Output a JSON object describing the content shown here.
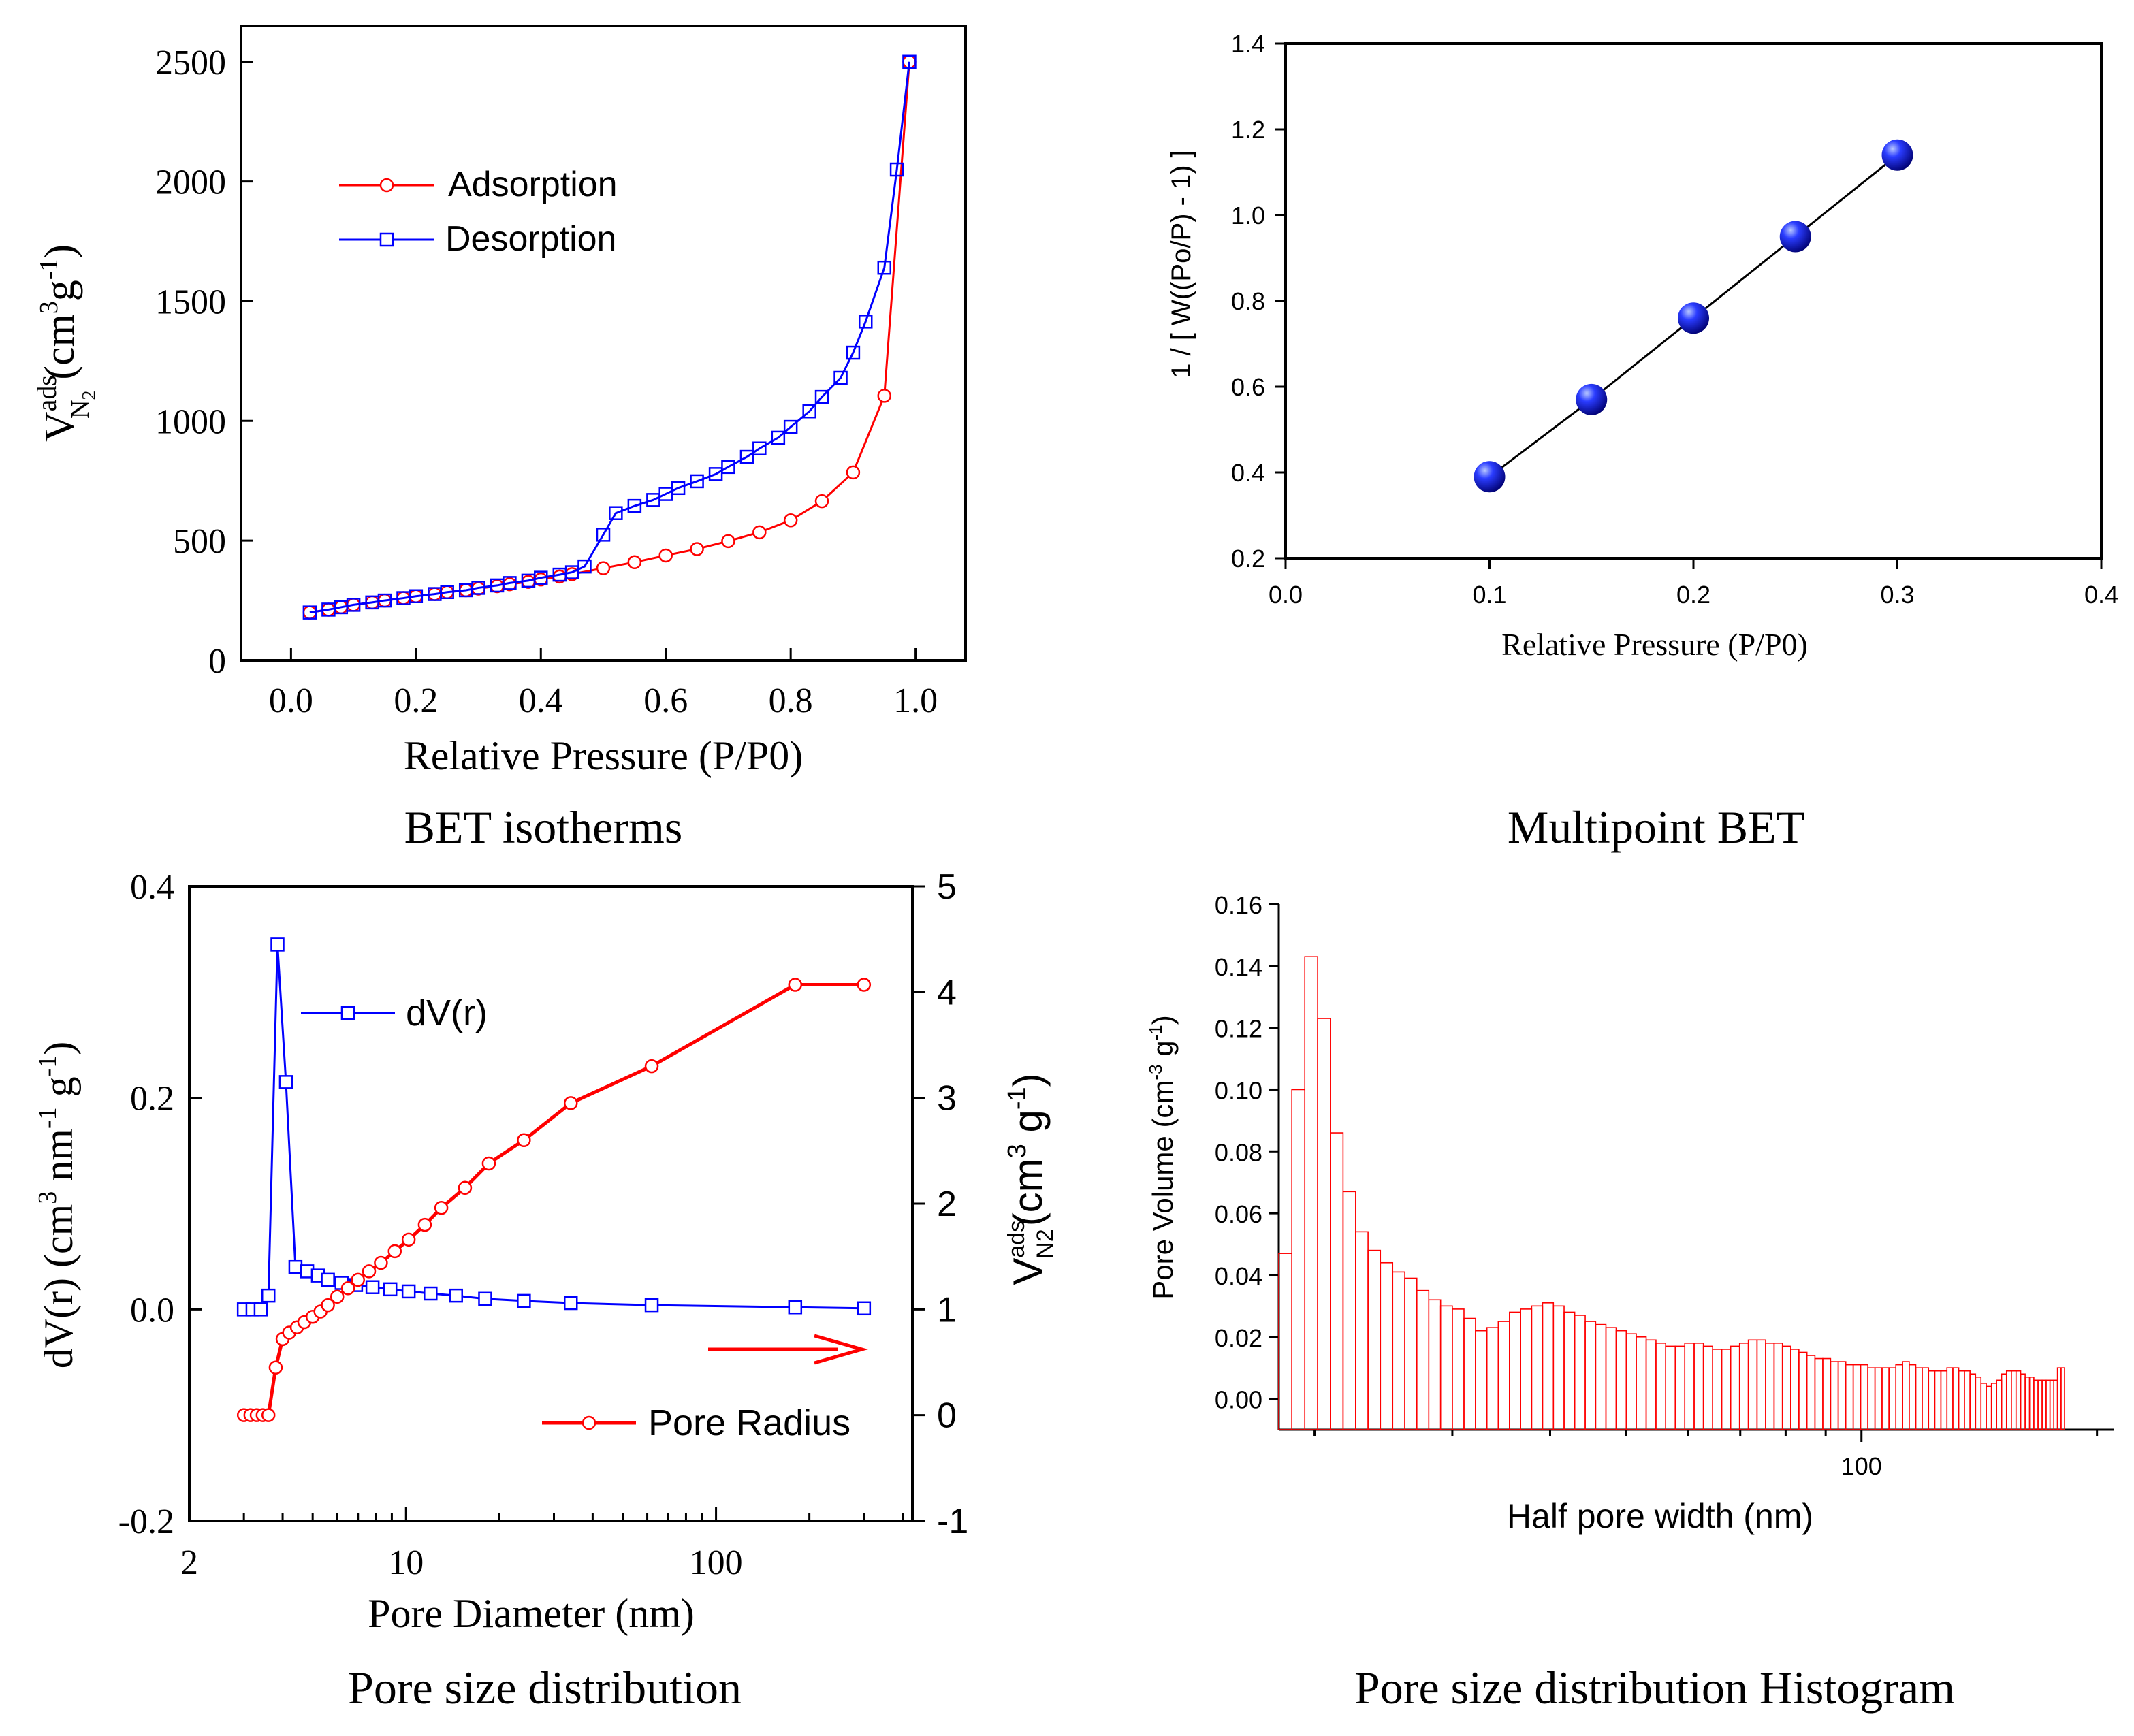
{
  "chart_data": [
    {
      "type": "line",
      "caption": "BET isotherms",
      "xlabel": "Relative Pressure (P/P0)",
      "ylabel_main": "V",
      "ylabel_sup": "ads",
      "ylabel_sub": "N",
      "ylabel_sub2": "2",
      "ylabel_unit": "(cm",
      "ylabel_unit_sup": "3",
      "ylabel_unit_mid": "g",
      "ylabel_unit_sup2": "-1",
      "ylabel_unit_end": ")",
      "xlim": [
        -0.08,
        1.08
      ],
      "ylim": [
        0,
        2650
      ],
      "xticks": [
        0.0,
        0.2,
        0.4,
        0.6,
        0.8,
        1.0
      ],
      "xtick_labels": [
        "0.0",
        "0.2",
        "0.4",
        "0.6",
        "0.8",
        "1.0"
      ],
      "yticks": [
        0,
        500,
        1000,
        1500,
        2000,
        2500
      ],
      "ytick_labels": [
        "0",
        "500",
        "1000",
        "1500",
        "2000",
        "2500"
      ],
      "legend": [
        "Adsorption",
        "Desorption"
      ],
      "series": [
        {
          "name": "Adsorption",
          "color": "#ff0000",
          "marker": "circle",
          "x": [
            0.03,
            0.06,
            0.08,
            0.1,
            0.13,
            0.15,
            0.18,
            0.2,
            0.23,
            0.25,
            0.28,
            0.3,
            0.33,
            0.35,
            0.38,
            0.4,
            0.43,
            0.45,
            0.5,
            0.55,
            0.6,
            0.65,
            0.7,
            0.75,
            0.8,
            0.85,
            0.9,
            0.95,
            0.99
          ],
          "y": [
            200,
            212,
            222,
            232,
            242,
            250,
            260,
            268,
            277,
            285,
            293,
            300,
            310,
            318,
            328,
            338,
            350,
            360,
            385,
            410,
            438,
            465,
            498,
            535,
            585,
            665,
            785,
            1105,
            2500
          ]
        },
        {
          "name": "Desorption",
          "color": "#0000ff",
          "marker": "square",
          "x": [
            0.03,
            0.06,
            0.08,
            0.1,
            0.13,
            0.15,
            0.18,
            0.2,
            0.23,
            0.25,
            0.28,
            0.3,
            0.33,
            0.35,
            0.38,
            0.4,
            0.43,
            0.45,
            0.47,
            0.5,
            0.52,
            0.55,
            0.58,
            0.6,
            0.62,
            0.65,
            0.68,
            0.7,
            0.73,
            0.75,
            0.78,
            0.8,
            0.83,
            0.85,
            0.88,
            0.9,
            0.92,
            0.95,
            0.97,
            0.99
          ],
          "y": [
            200,
            212,
            222,
            232,
            242,
            250,
            260,
            268,
            277,
            285,
            293,
            303,
            313,
            323,
            333,
            345,
            358,
            368,
            392,
            525,
            615,
            645,
            670,
            695,
            720,
            748,
            778,
            808,
            850,
            885,
            930,
            975,
            1040,
            1100,
            1180,
            1285,
            1415,
            1640,
            2050,
            2500
          ]
        }
      ]
    },
    {
      "type": "scatter",
      "caption": "Multipoint BET",
      "xlabel": "Relative Pressure (P/P0)",
      "ylabel": "1 / [ W((Po/P) - 1) ]",
      "xlim": [
        0.0,
        0.4
      ],
      "ylim": [
        0.2,
        1.4
      ],
      "xticks": [
        0.0,
        0.1,
        0.2,
        0.3,
        0.4
      ],
      "xtick_labels": [
        "0.0",
        "0.1",
        "0.2",
        "0.3",
        "0.4"
      ],
      "yticks": [
        0.2,
        0.4,
        0.6,
        0.8,
        1.0,
        1.2,
        1.4
      ],
      "ytick_labels": [
        "0.2",
        "0.4",
        "0.6",
        "0.8",
        "1.0",
        "1.2",
        "1.4"
      ],
      "series": [
        {
          "name": "BET points",
          "color": "#0000ee",
          "x": [
            0.1,
            0.15,
            0.2,
            0.25,
            0.3
          ],
          "y": [
            0.39,
            0.57,
            0.76,
            0.95,
            1.14
          ]
        }
      ]
    },
    {
      "type": "line",
      "caption": "Pore size distribution",
      "xlabel": "Pore Diameter (nm)",
      "xscale": "log",
      "ylabel_left": "dV(r) (cm",
      "ylabel_left_sup": "3",
      "ylabel_left_mid": " nm",
      "ylabel_left_sup2": "-1",
      "ylabel_left_mid2": " g",
      "ylabel_left_sup3": "-1",
      "ylabel_left_end": ")",
      "ylabel_right_main": "V",
      "ylabel_right_sup": "ads",
      "ylabel_right_sub": "N2",
      "ylabel_right_unit": "(cm",
      "ylabel_right_unit_sup": "3",
      "ylabel_right_unit_mid": " g",
      "ylabel_right_unit_sup2": "-1",
      "ylabel_right_unit_end": ")",
      "xlim": [
        2,
        430
      ],
      "ylim_left": [
        -0.2,
        0.4
      ],
      "ylim_right": [
        -1,
        5
      ],
      "xtick_labels": [
        "2",
        "10",
        "100"
      ],
      "xticks": [
        2,
        10,
        100
      ],
      "yticks_left": [
        -0.2,
        0.0,
        0.2,
        0.4
      ],
      "ytick_left_labels": [
        "-0.2",
        "0.0",
        "0.2",
        "0.4"
      ],
      "yticks_right": [
        -1,
        0,
        1,
        2,
        3,
        4,
        5
      ],
      "ytick_right_labels": [
        "-1",
        "0",
        "1",
        "2",
        "3",
        "4",
        "5"
      ],
      "legend": [
        "dV(r)",
        "Pore Radius"
      ],
      "series": [
        {
          "name": "dV(r)",
          "axis": "left",
          "color": "#0000ff",
          "marker": "square",
          "x": [
            3.0,
            3.2,
            3.4,
            3.6,
            3.85,
            4.1,
            4.4,
            4.8,
            5.2,
            5.6,
            6.2,
            6.9,
            7.8,
            8.9,
            10.2,
            12.0,
            14.5,
            18.0,
            24.0,
            34.0,
            62.0,
            180.0,
            300.0
          ],
          "y": [
            0.0,
            0.0,
            0.0,
            0.013,
            0.345,
            0.215,
            0.04,
            0.036,
            0.032,
            0.028,
            0.025,
            0.023,
            0.021,
            0.019,
            0.017,
            0.015,
            0.013,
            0.01,
            0.008,
            0.006,
            0.004,
            0.002,
            0.001
          ]
        },
        {
          "name": "Pore Radius",
          "axis": "right",
          "color": "#ff0000",
          "marker": "circle",
          "x": [
            3.0,
            3.15,
            3.3,
            3.45,
            3.6,
            3.8,
            4.0,
            4.2,
            4.45,
            4.7,
            5.0,
            5.3,
            5.6,
            6.0,
            6.5,
            7.0,
            7.6,
            8.3,
            9.2,
            10.2,
            11.5,
            13.0,
            15.5,
            18.5,
            24.0,
            34.0,
            62.0,
            180.0,
            300.0
          ],
          "y": [
            0.0,
            0.0,
            0.0,
            0.0,
            0.0,
            0.45,
            0.72,
            0.78,
            0.83,
            0.88,
            0.93,
            0.98,
            1.04,
            1.12,
            1.2,
            1.28,
            1.36,
            1.44,
            1.55,
            1.66,
            1.8,
            1.96,
            2.15,
            2.38,
            2.6,
            2.95,
            3.3,
            4.07,
            4.07
          ]
        }
      ]
    },
    {
      "type": "bar",
      "caption": "Pore size distribution Histogram",
      "xlabel": "Half pore width (nm)",
      "xscale": "log",
      "ylabel": "Pore Volume (cm",
      "ylabel_sup": "-3",
      "ylabel_mid": " g",
      "ylabel_sup2": "-1",
      "ylabel_end": ")",
      "xlim": [
        18,
        210
      ],
      "ylim": [
        -0.01,
        0.16
      ],
      "xticks": [
        100
      ],
      "xtick_labels": [
        "100"
      ],
      "yticks": [
        0.0,
        0.02,
        0.04,
        0.06,
        0.08,
        0.1,
        0.12,
        0.14,
        0.16
      ],
      "ytick_labels": [
        "0.00",
        "0.02",
        "0.04",
        "0.06",
        "0.08",
        "0.10",
        "0.12",
        "0.14",
        "0.16"
      ],
      "color": "#ff0000",
      "values": [
        0.047,
        0.1,
        0.143,
        0.123,
        0.086,
        0.067,
        0.054,
        0.048,
        0.044,
        0.041,
        0.039,
        0.035,
        0.032,
        0.03,
        0.029,
        0.026,
        0.022,
        0.023,
        0.025,
        0.028,
        0.029,
        0.03,
        0.031,
        0.03,
        0.028,
        0.027,
        0.025,
        0.024,
        0.023,
        0.022,
        0.021,
        0.02,
        0.019,
        0.018,
        0.017,
        0.017,
        0.018,
        0.018,
        0.017,
        0.016,
        0.016,
        0.017,
        0.018,
        0.019,
        0.019,
        0.018,
        0.018,
        0.017,
        0.016,
        0.015,
        0.014,
        0.013,
        0.013,
        0.012,
        0.012,
        0.011,
        0.011,
        0.011,
        0.01,
        0.01,
        0.01,
        0.01,
        0.011,
        0.012,
        0.011,
        0.01,
        0.01,
        0.009,
        0.009,
        0.009,
        0.01,
        0.01,
        0.009,
        0.009,
        0.008,
        0.007,
        0.005,
        0.004,
        0.005,
        0.006,
        0.008,
        0.009,
        0.009,
        0.009,
        0.008,
        0.007,
        0.007,
        0.006,
        0.006,
        0.006,
        0.006,
        0.006,
        0.006,
        0.01,
        0.01
      ]
    }
  ]
}
